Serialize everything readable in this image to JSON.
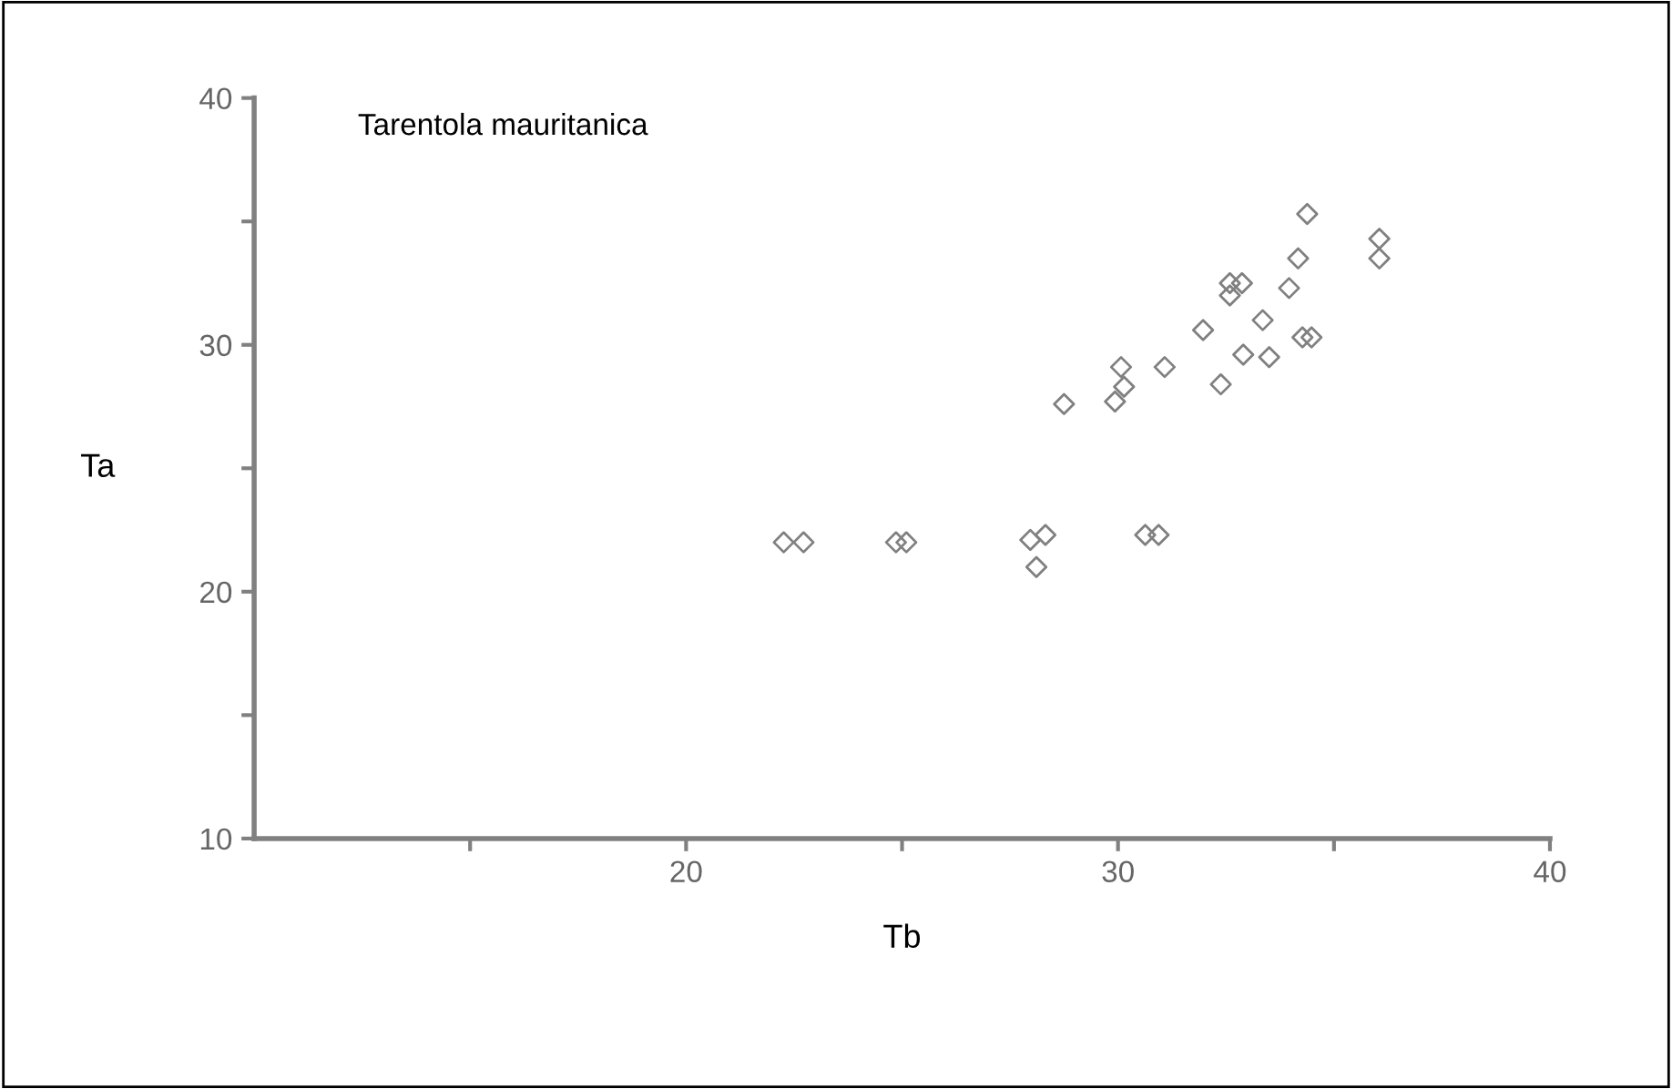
{
  "chart_data": {
    "type": "scatter",
    "title": "Tarentola mauritanica",
    "xlabel": "Tb",
    "ylabel": "Ta",
    "x": [
      34.38,
      36.05,
      36.05,
      34.17,
      32.59,
      32.87,
      32.59,
      33.96,
      33.35,
      31.97,
      34.27,
      34.48,
      32.9,
      33.5,
      31.08,
      30.07,
      30.14,
      29.93,
      32.38,
      28.75,
      22.26,
      22.72,
      24.86,
      25.1,
      27.97,
      28.32,
      28.11,
      30.63,
      30.94
    ],
    "series": [
      {
        "color": "#808080",
        "values": [
          35.3,
          34.3,
          33.5,
          33.5,
          32.5,
          32.5,
          32.0,
          32.3,
          31.0,
          30.6,
          30.3,
          30.3,
          29.6,
          29.5,
          29.1,
          29.1,
          28.3,
          27.7,
          28.4,
          27.6,
          22.0,
          22.0,
          22.0,
          22.0,
          22.1,
          22.3,
          21.0,
          22.3,
          22.3
        ]
      }
    ],
    "xlim": [
      10,
      40
    ],
    "xticks": [
      {
        "value": 15,
        "label": null
      },
      20,
      {
        "value": 25,
        "label": null
      },
      30,
      {
        "value": 35,
        "label": null
      },
      40
    ],
    "ylim": [
      10,
      40
    ],
    "yticks": [
      10,
      {
        "value": 15,
        "label": null
      },
      20,
      {
        "value": 25,
        "label": null
      },
      30,
      {
        "value": 35,
        "label": null
      },
      40
    ],
    "marker": "diamond",
    "grid": false,
    "legend": false
  }
}
